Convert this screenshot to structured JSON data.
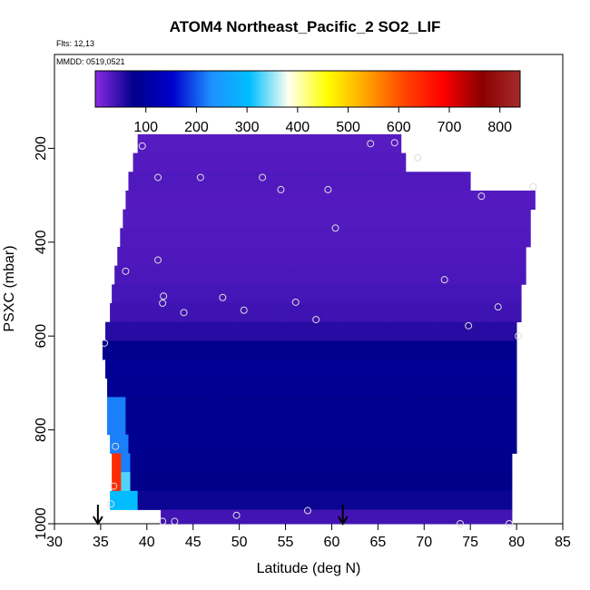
{
  "chart_data": {
    "type": "heatmap",
    "title": "ATOM4 Northeast_Pacific_2 SO2_LIF",
    "flights_label": "Flts: 12,13",
    "dates_label": "MMDD: 0519,0521",
    "xlabel": "Latitude (deg N)",
    "ylabel": "PSXC (mbar)",
    "xlim": [
      30,
      85
    ],
    "ylim": [
      1000,
      0
    ],
    "x_ticks": [
      30,
      35,
      40,
      45,
      50,
      55,
      60,
      65,
      70,
      75,
      80,
      85
    ],
    "y_ticks": [
      200,
      400,
      600,
      800,
      1000
    ],
    "colorbar": {
      "range": [
        0,
        840
      ],
      "ticks": [
        100,
        200,
        300,
        400,
        500,
        600,
        700,
        800
      ],
      "colors": [
        "#8a2be2",
        "#00008b",
        "#0000cd",
        "#1e90ff",
        "#00bfff",
        "#fffff0",
        "#ffff00",
        "#ffa500",
        "#ff4500",
        "#ff0000",
        "#8b0000",
        "#a52a2a"
      ]
    },
    "arrow_latitudes": [
      34.7,
      61.2
    ],
    "rows": [
      {
        "p_top": 170,
        "p_bot": 210,
        "lat_min": 39.0,
        "lat_max": 67.5,
        "value": 28
      },
      {
        "p_top": 210,
        "p_bot": 250,
        "lat_min": 38.5,
        "lat_max": 68.0,
        "value": 30
      },
      {
        "p_top": 250,
        "p_bot": 290,
        "lat_min": 38.0,
        "lat_max": 75.0,
        "value": 32
      },
      {
        "p_top": 290,
        "p_bot": 330,
        "lat_min": 37.7,
        "lat_max": 82.0,
        "value": 30
      },
      {
        "p_top": 330,
        "p_bot": 370,
        "lat_min": 37.4,
        "lat_max": 81.5,
        "value": 31
      },
      {
        "p_top": 370,
        "p_bot": 410,
        "lat_min": 37.1,
        "lat_max": 81.5,
        "value": 32
      },
      {
        "p_top": 410,
        "p_bot": 450,
        "lat_min": 36.8,
        "lat_max": 81.0,
        "value": 33
      },
      {
        "p_top": 450,
        "p_bot": 490,
        "lat_min": 36.5,
        "lat_max": 81.0,
        "value": 35
      },
      {
        "p_top": 490,
        "p_bot": 530,
        "lat_min": 36.2,
        "lat_max": 80.5,
        "value": 38
      },
      {
        "p_top": 530,
        "p_bot": 570,
        "lat_min": 36.0,
        "lat_max": 80.5,
        "value": 42
      },
      {
        "p_top": 570,
        "p_bot": 610,
        "lat_min": 35.5,
        "lat_max": 80.0,
        "value": 55
      },
      {
        "p_top": 610,
        "p_bot": 650,
        "lat_min": 35.2,
        "lat_max": 80.0,
        "value": 75
      },
      {
        "p_top": 650,
        "p_bot": 690,
        "lat_min": 35.5,
        "lat_max": 80.0,
        "value": 90
      },
      {
        "p_top": 690,
        "p_bot": 730,
        "lat_min": 35.7,
        "lat_max": 80.0,
        "value": 85
      },
      {
        "p_top": 730,
        "p_bot": 770,
        "lat_min": 35.7,
        "lat_max": 80.0,
        "value": 80
      },
      {
        "p_top": 770,
        "p_bot": 810,
        "lat_min": 35.7,
        "lat_max": 80.0,
        "value": 82
      },
      {
        "p_top": 810,
        "p_bot": 850,
        "lat_min": 36.0,
        "lat_max": 80.0,
        "value": 80
      },
      {
        "p_top": 850,
        "p_bot": 890,
        "lat_min": 36.2,
        "lat_max": 79.5,
        "value": 78
      },
      {
        "p_top": 890,
        "p_bot": 930,
        "lat_min": 36.2,
        "lat_max": 79.5,
        "value": 76
      },
      {
        "p_top": 930,
        "p_bot": 970,
        "lat_min": 36.0,
        "lat_max": 79.5,
        "value": 70
      },
      {
        "p_top": 970,
        "p_bot": 1000,
        "lat_min": 41.5,
        "lat_max": 79.5,
        "value": 40
      }
    ],
    "points": [
      {
        "lat": 39.5,
        "p": 195
      },
      {
        "lat": 64.2,
        "p": 190
      },
      {
        "lat": 66.8,
        "p": 188
      },
      {
        "lat": 69.3,
        "p": 220
      },
      {
        "lat": 41.2,
        "p": 262
      },
      {
        "lat": 45.8,
        "p": 262
      },
      {
        "lat": 52.5,
        "p": 262
      },
      {
        "lat": 54.5,
        "p": 288
      },
      {
        "lat": 59.6,
        "p": 288
      },
      {
        "lat": 76.2,
        "p": 302
      },
      {
        "lat": 81.8,
        "p": 282
      },
      {
        "lat": 60.4,
        "p": 370
      },
      {
        "lat": 41.2,
        "p": 438
      },
      {
        "lat": 37.7,
        "p": 462
      },
      {
        "lat": 72.2,
        "p": 480
      },
      {
        "lat": 41.8,
        "p": 515
      },
      {
        "lat": 41.7,
        "p": 530
      },
      {
        "lat": 48.2,
        "p": 518
      },
      {
        "lat": 44.0,
        "p": 550
      },
      {
        "lat": 50.5,
        "p": 545
      },
      {
        "lat": 56.1,
        "p": 528
      },
      {
        "lat": 58.3,
        "p": 565
      },
      {
        "lat": 78.0,
        "p": 538
      },
      {
        "lat": 74.8,
        "p": 578
      },
      {
        "lat": 80.2,
        "p": 600
      },
      {
        "lat": 35.4,
        "p": 615
      },
      {
        "lat": 36.6,
        "p": 835
      },
      {
        "lat": 36.4,
        "p": 920
      },
      {
        "lat": 36.1,
        "p": 958
      },
      {
        "lat": 41.7,
        "p": 995
      },
      {
        "lat": 43.0,
        "p": 995
      },
      {
        "lat": 49.7,
        "p": 982
      },
      {
        "lat": 57.4,
        "p": 972
      },
      {
        "lat": 73.9,
        "p": 1000
      },
      {
        "lat": 79.2,
        "p": 1000
      }
    ]
  }
}
